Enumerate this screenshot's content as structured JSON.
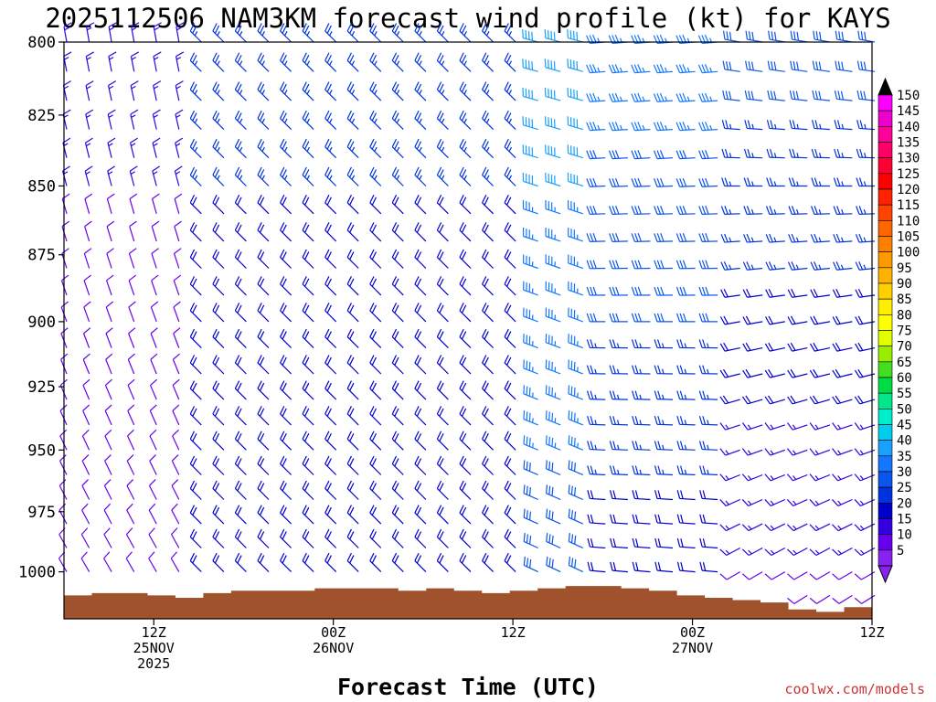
{
  "chart_data": {
    "type": "wind_profile_barbs",
    "title": "2025112506 NAM3KM forecast wind profile (kt) for KAYS",
    "xlabel": "Forecast Time (UTC)",
    "ylabel": "",
    "y_axis": {
      "units": "hPa",
      "inverted": true,
      "range": [
        800,
        1020
      ],
      "ticks": [
        "800",
        "825",
        "850",
        "875",
        "900",
        "925",
        "950",
        "975",
        "1000"
      ]
    },
    "x_axis": {
      "units": "hours since 2025-11-25 06Z",
      "range": [
        0,
        54
      ],
      "ticks": [
        {
          "hour": 6,
          "l1": "12Z",
          "l2": "25NOV",
          "l3": "2025"
        },
        {
          "hour": 18,
          "l1": "00Z",
          "l2": "26NOV",
          "l3": ""
        },
        {
          "hour": 30,
          "l1": "12Z",
          "l2": "",
          "l3": ""
        },
        {
          "hour": 42,
          "l1": "00Z",
          "l2": "27NOV",
          "l3": ""
        },
        {
          "hour": 54,
          "l1": "12Z",
          "l2": "",
          "l3": ""
        }
      ]
    },
    "colorbar": {
      "units": "kt",
      "labels": [
        "150",
        "145",
        "140",
        "135",
        "130",
        "125",
        "120",
        "115",
        "110",
        "105",
        "100",
        "95",
        "90",
        "85",
        "80",
        "75",
        "70",
        "65",
        "60",
        "55",
        "50",
        "45",
        "40",
        "35",
        "30",
        "25",
        "20",
        "15",
        "10",
        "5"
      ],
      "colors": [
        "#ff00ff",
        "#ee00cc",
        "#ff0099",
        "#ff0066",
        "#ff0033",
        "#ff0000",
        "#ff2200",
        "#ff4400",
        "#ff6600",
        "#ff8000",
        "#ff9900",
        "#ffb300",
        "#ffd000",
        "#ffee00",
        "#ffff00",
        "#e0ff00",
        "#99ee00",
        "#44dd22",
        "#00dd44",
        "#00e88a",
        "#00eecc",
        "#00ccee",
        "#1aa0ff",
        "#1477ff",
        "#0a55ee",
        "#0033dd",
        "#0000cc",
        "#3300e0",
        "#6600ee",
        "#8822ee"
      ]
    },
    "terrain_surface_hpa": [
      1010,
      1009,
      1009,
      1010,
      1011,
      1009,
      1008,
      1008,
      1008,
      1007,
      1007,
      1007,
      1008,
      1007,
      1008,
      1009,
      1008,
      1007,
      1006,
      1006,
      1007,
      1008,
      1010,
      1011,
      1012,
      1013,
      1016,
      1017,
      1015
    ],
    "wind_regimes": [
      {
        "hours": [
          0,
          9
        ],
        "speed_kt": 10,
        "direction": "light, variable (N to NW)"
      },
      {
        "hours": [
          9,
          31
        ],
        "speed_kt": 20,
        "direction": "northwest"
      },
      {
        "hours": [
          31,
          36
        ],
        "speed_kt": 35,
        "direction": "west-northwest"
      },
      {
        "hours": [
          36,
          45
        ],
        "speed_kt": 30,
        "direction": "west"
      },
      {
        "hours": [
          45,
          54
        ],
        "speed_kt": 15,
        "direction": "southwest (lower levels)"
      }
    ]
  },
  "credit": "coolwx.com/models"
}
